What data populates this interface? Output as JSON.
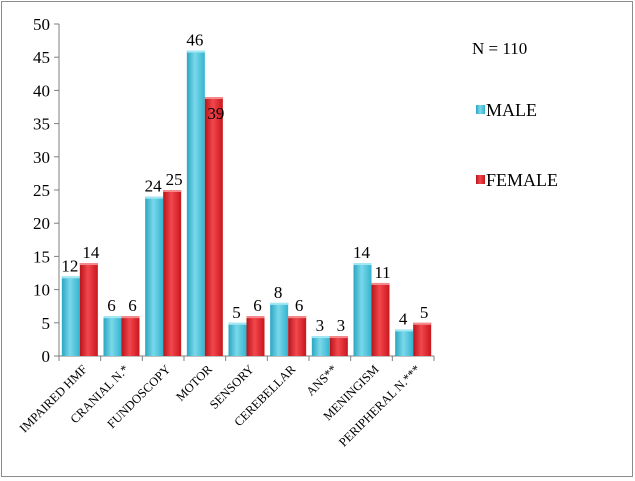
{
  "chart_data": {
    "type": "bar",
    "title": "",
    "xlabel": "",
    "ylabel": "",
    "ylim": [
      0,
      50
    ],
    "yticks": [
      0,
      5,
      10,
      15,
      20,
      25,
      30,
      35,
      40,
      45,
      50
    ],
    "categories": [
      "IMPAIRED HMF",
      "CRANIAL N.*",
      "FUNDOSCOPY",
      "MOTOR",
      "SENSORY",
      "CEREBELLAR",
      "ANS**",
      "MENINGISM",
      "PERIPHERAL N.***"
    ],
    "series": [
      {
        "name": "MALE",
        "color": "#4fc6de",
        "values": [
          12,
          6,
          24,
          46,
          5,
          8,
          3,
          14,
          4
        ]
      },
      {
        "name": "FEMALE",
        "color": "#e8242b",
        "values": [
          14,
          6,
          25,
          39,
          6,
          6,
          3,
          11,
          5
        ]
      }
    ],
    "annotation": "N = 110",
    "legend_position": "right",
    "grid": false
  }
}
